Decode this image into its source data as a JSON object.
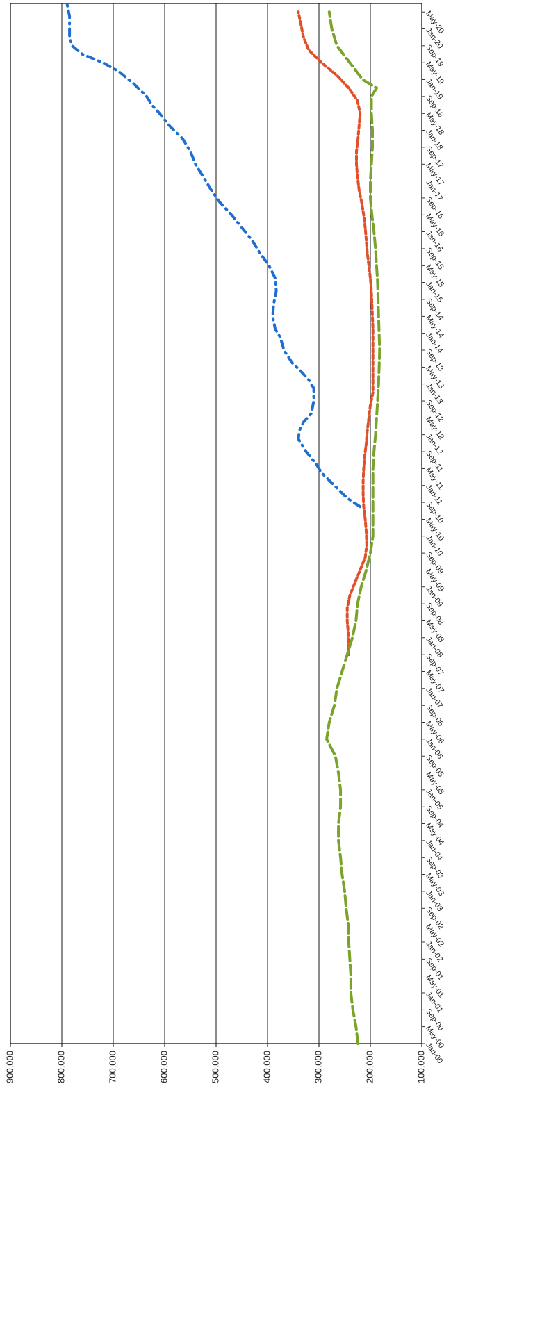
{
  "chart_data": {
    "type": "line",
    "orientation": "rotated-90",
    "x_tick_labels": [
      "Jan-00",
      "May-00",
      "Sep-00",
      "Jan-01",
      "May-01",
      "Sep-01",
      "Jan-02",
      "May-02",
      "Sep-02",
      "Jan-03",
      "May-03",
      "Sep-03",
      "Jan-04",
      "May-04",
      "Sep-04",
      "Jan-05",
      "May-05",
      "Sep-05",
      "Jan-06",
      "May-06",
      "Sep-06",
      "Jan-07",
      "May-07",
      "Sep-07",
      "Jan-08",
      "May-08",
      "Sep-08",
      "Jan-09",
      "May-09",
      "Sep-09",
      "Jan-10",
      "May-10",
      "Sep-10",
      "Jan-11",
      "May-11",
      "Sep-11",
      "Jan-12",
      "May-12",
      "Sep-12",
      "Jan-13",
      "May-13",
      "Sep-13",
      "Jan-14",
      "May-14",
      "Sep-14",
      "Jan-15",
      "May-15",
      "Sep-15",
      "Jan-16",
      "May-16",
      "Sep-16",
      "Jan-17",
      "May-17",
      "Sep-17",
      "Jan-18",
      "May-18",
      "Sep-18",
      "Jan-19",
      "May-19",
      "Sep-19",
      "Jan-20",
      "May-20"
    ],
    "y_tick_labels": [
      "100,000",
      "200,000",
      "300,000",
      "400,000",
      "500,000",
      "600,000",
      "700,000",
      "800,000",
      "900,000"
    ],
    "ylim": [
      100000,
      900000
    ],
    "grid": true,
    "series": [
      {
        "color": "#1f6fd0",
        "style": "dash-dot",
        "x": [
          "Aug-10",
          "Oct-10",
          "Jan-11",
          "Apr-11",
          "Jun-11",
          "Sep-11",
          "Dec-11",
          "Feb-12",
          "Apr-12",
          "Jun-12",
          "Sep-12",
          "Dec-12",
          "Feb-13",
          "Apr-13",
          "Jun-13",
          "Sep-13",
          "Dec-13",
          "Feb-14",
          "May-14",
          "Aug-14",
          "Nov-14",
          "Feb-15",
          "May-15",
          "Aug-15",
          "Nov-15",
          "Feb-16",
          "May-16",
          "Aug-16",
          "Nov-16",
          "Feb-17",
          "May-17",
          "Aug-17",
          "Nov-17",
          "Feb-18",
          "May-18",
          "Jul-18",
          "Sep-18",
          "Dec-18",
          "Mar-19",
          "May-19",
          "Jul-19",
          "Sep-19",
          "Nov-19",
          "Jan-20",
          "Apr-20",
          "Jul-20"
        ],
        "y": [
          220000,
          245000,
          270000,
          295000,
          305000,
          325000,
          340000,
          338000,
          330000,
          315000,
          310000,
          310000,
          320000,
          335000,
          352000,
          368000,
          375000,
          385000,
          390000,
          388000,
          383000,
          385000,
          397000,
          415000,
          430000,
          450000,
          470000,
          493000,
          510000,
          525000,
          540000,
          550000,
          565000,
          590000,
          610000,
          625000,
          635000,
          660000,
          690000,
          720000,
          760000,
          780000,
          785000,
          785000,
          785000,
          790000
        ]
      },
      {
        "color": "#e0502a",
        "style": "dashed",
        "x": [
          "Sep-07",
          "Nov-07",
          "Feb-08",
          "May-08",
          "Aug-08",
          "Nov-08",
          "Feb-09",
          "May-09",
          "Aug-09",
          "Nov-09",
          "Feb-10",
          "May-10",
          "Aug-10",
          "Nov-10",
          "Feb-11",
          "May-11",
          "Aug-11",
          "Nov-11",
          "Feb-12",
          "May-12",
          "Aug-12",
          "Nov-12",
          "Feb-13",
          "May-13",
          "Aug-13",
          "Nov-13",
          "Feb-14",
          "May-14",
          "Aug-14",
          "Nov-14",
          "Feb-15",
          "May-15",
          "Aug-15",
          "Nov-15",
          "Feb-16",
          "May-16",
          "Aug-16",
          "Nov-16",
          "Feb-17",
          "May-17",
          "Aug-17",
          "Nov-17",
          "Feb-18",
          "May-18",
          "Aug-18",
          "Nov-18",
          "Feb-19",
          "May-19",
          "Aug-19",
          "Nov-19",
          "Feb-20",
          "May-20"
        ],
        "y": [
          242000,
          243000,
          243000,
          245000,
          245000,
          240000,
          230000,
          220000,
          210000,
          207000,
          208000,
          210000,
          213000,
          214000,
          214000,
          213000,
          211000,
          208000,
          206000,
          203000,
          200000,
          195000,
          195000,
          195000,
          195000,
          195000,
          195000,
          196000,
          197000,
          198000,
          200000,
          203000,
          206000,
          208000,
          210000,
          213000,
          217000,
          222000,
          225000,
          227000,
          227000,
          224000,
          222000,
          220000,
          225000,
          242000,
          265000,
          295000,
          320000,
          330000,
          335000,
          340000
        ]
      },
      {
        "color": "#7aa32a",
        "style": "long-dash",
        "x": [
          "Jan-00",
          "May-00",
          "Sep-00",
          "Jan-01",
          "May-01",
          "Sep-01",
          "Jan-02",
          "May-02",
          "Sep-02",
          "Jan-03",
          "May-03",
          "Sep-03",
          "Jan-04",
          "May-04",
          "Sep-04",
          "Jan-05",
          "May-05",
          "Sep-05",
          "Jan-06",
          "May-06",
          "Sep-06",
          "Jan-07",
          "May-07",
          "Sep-07",
          "Jan-08",
          "May-08",
          "Sep-08",
          "Jan-09",
          "May-09",
          "Sep-09",
          "Jan-10",
          "May-10",
          "Sep-10",
          "Jan-11",
          "May-11",
          "Sep-11",
          "Jan-12",
          "May-12",
          "Sep-12",
          "Jan-13",
          "May-13",
          "Sep-13",
          "Jan-14",
          "May-14",
          "Sep-14",
          "Jan-15",
          "May-15",
          "Sep-15",
          "Jan-16",
          "May-16",
          "Sep-16",
          "Jan-17",
          "May-17",
          "Sep-17",
          "Jan-18",
          "May-18",
          "Sep-18",
          "Nov-18",
          "Jan-19",
          "May-19",
          "Sep-19",
          "Jan-20",
          "May-20"
        ],
        "y": [
          224000,
          228000,
          234000,
          238000,
          238000,
          240000,
          242000,
          243000,
          247000,
          250000,
          255000,
          258000,
          262000,
          262000,
          258000,
          258000,
          262000,
          268000,
          285000,
          280000,
          270000,
          265000,
          255000,
          245000,
          235000,
          228000,
          225000,
          218000,
          208000,
          200000,
          195000,
          195000,
          195000,
          195000,
          195000,
          193000,
          190000,
          188000,
          186000,
          184000,
          183000,
          182000,
          183000,
          184000,
          185000,
          186000,
          188000,
          190000,
          193000,
          197000,
          200000,
          200000,
          198000,
          196000,
          196000,
          198000,
          198000,
          188000,
          215000,
          240000,
          265000,
          275000,
          280000
        ]
      }
    ]
  }
}
